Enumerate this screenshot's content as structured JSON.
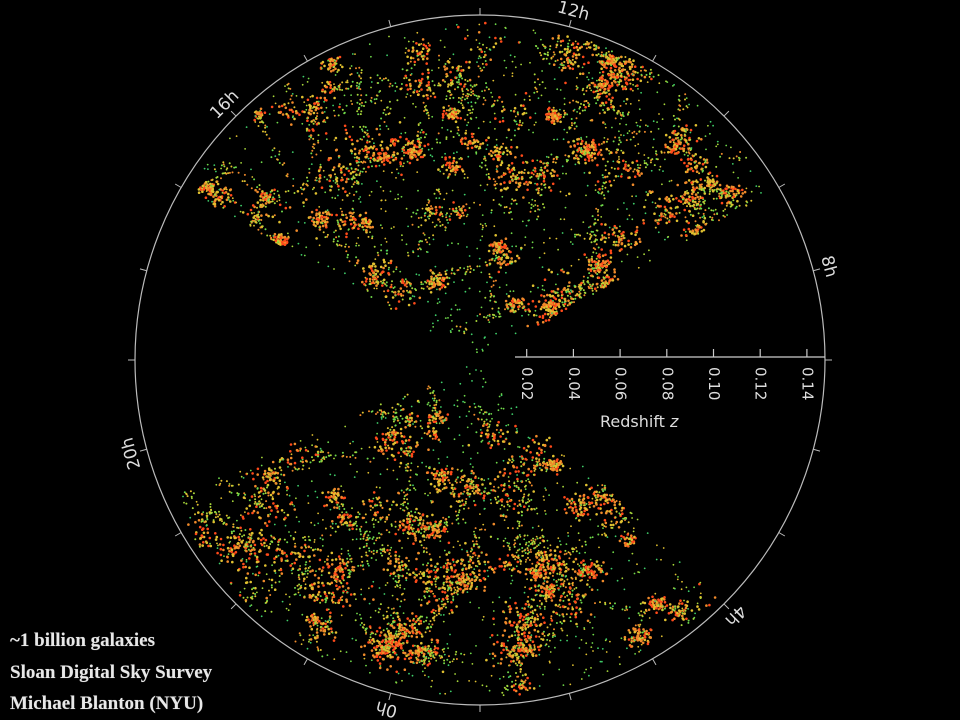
{
  "figure": {
    "hour_labels": [
      "12h",
      "8h",
      "4h",
      "0h",
      "20h",
      "16h"
    ],
    "redshift_axis": {
      "label": "Redshift",
      "symbol": "z",
      "ticks": [
        0.02,
        0.04,
        0.06,
        0.08,
        {
          "value": 0.1,
          "label": "0.10"
        },
        0.12,
        0.14
      ]
    }
  },
  "caption": {
    "lines": [
      "~1 billion galaxies",
      "Sloan Digital Sky Survey",
      "Michael Blanton (NYU)"
    ]
  }
}
